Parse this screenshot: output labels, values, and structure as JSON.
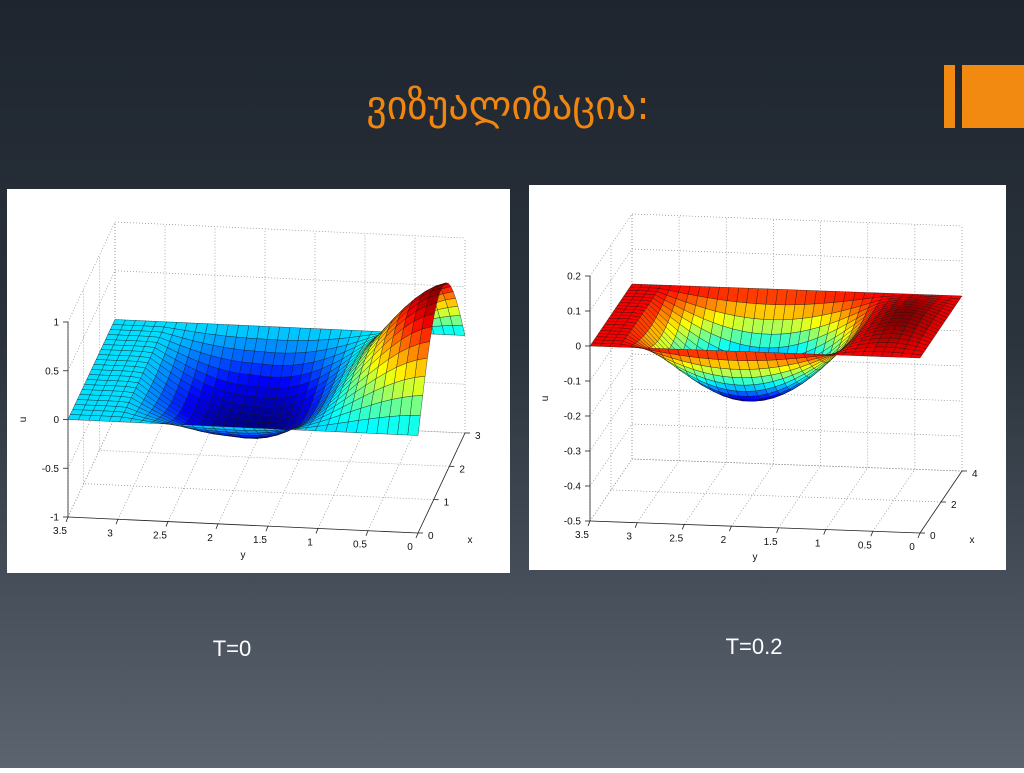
{
  "title": "ვიზუალიზაცია:",
  "plots": [
    {
      "caption": "T=0",
      "u_label": "u",
      "y_label": "y",
      "x_label": "x",
      "u_ticks": [
        -1,
        -0.5,
        0,
        0.5,
        1
      ],
      "y_ticks": [
        3.5,
        3,
        2.5,
        2,
        1.5,
        1,
        0.5,
        0
      ],
      "x_ticks": [
        0,
        1,
        2,
        3
      ]
    },
    {
      "caption": "T=0.2",
      "u_label": "u",
      "y_label": "y",
      "x_label": "x",
      "u_ticks": [
        -0.5,
        -0.4,
        -0.3,
        -0.2,
        -0.1,
        0,
        0.1,
        0.2
      ],
      "y_ticks": [
        3.5,
        3,
        2.5,
        2,
        1.5,
        1,
        0.5,
        0
      ],
      "x_ticks": [
        0,
        2,
        4
      ]
    }
  ]
}
